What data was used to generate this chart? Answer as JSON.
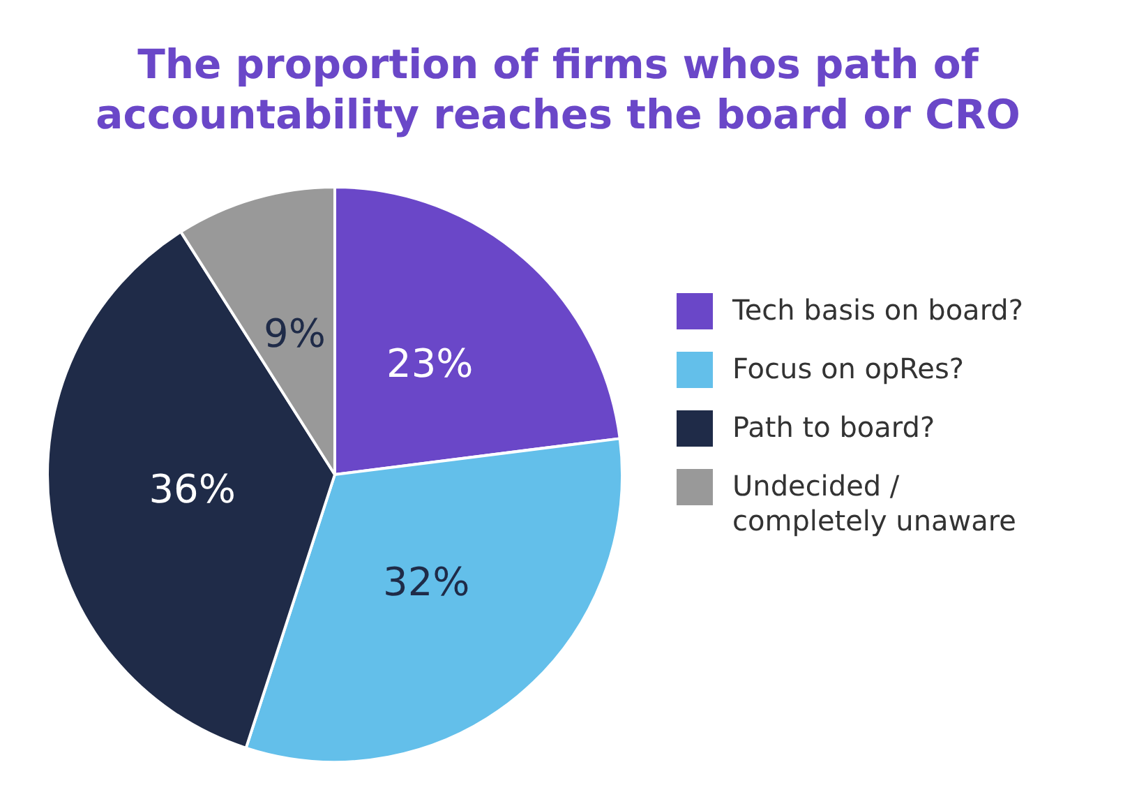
{
  "chart_data": {
    "type": "pie",
    "title": "The proportion of firms whos path of accountability reaches the board or CRO",
    "categories": [
      "Tech basis on board?",
      "Focus on opRes?",
      "Path to board?",
      "Undecided / completely unaware"
    ],
    "values": [
      23,
      32,
      36,
      9
    ],
    "colors": [
      "#6a47c8",
      "#63bfea",
      "#1f2b48",
      "#999999"
    ],
    "value_labels": [
      "23%",
      "32%",
      "36%",
      "9%"
    ],
    "legend": "right"
  }
}
